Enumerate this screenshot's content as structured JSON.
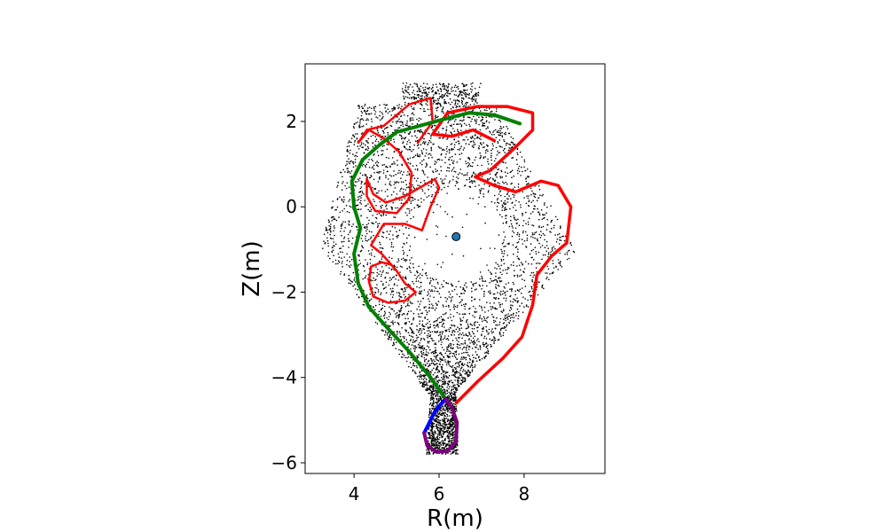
{
  "chart_data": {
    "type": "scatter",
    "title": "",
    "xlabel": "R(m)",
    "ylabel": "Z(m)",
    "xlim": [
      2.85,
      9.9
    ],
    "ylim": [
      -6.25,
      3.35
    ],
    "xticks": [
      4,
      6,
      8
    ],
    "xtick_labels": [
      "4",
      "6",
      "8"
    ],
    "yticks": [
      2,
      0,
      -2,
      -4,
      -6
    ],
    "ytick_labels": [
      "2",
      "0",
      "−2",
      "−4",
      "−6"
    ],
    "grid": false,
    "legend": "none",
    "colors": {
      "scatter": "#000000",
      "red_curve": "#ff0000",
      "green_curve": "#008000",
      "blue_curve": "#0000ff",
      "purple_curve": "#7f007f",
      "magnetic_axis": "#1f77b4"
    },
    "magnetic_axis": {
      "x": 6.4,
      "y": -0.7
    },
    "series": [
      {
        "kind": "line",
        "color": "#ff0000",
        "width": 3.5,
        "points": [
          [
            6.4,
            -4.6
          ],
          [
            6.9,
            -4.1
          ],
          [
            7.5,
            -3.55
          ],
          [
            7.95,
            -3.05
          ],
          [
            8.2,
            -2.3
          ],
          [
            8.3,
            -1.6
          ],
          [
            8.65,
            -1.15
          ],
          [
            9.0,
            -0.85
          ],
          [
            9.1,
            0.0
          ],
          [
            8.8,
            0.5
          ],
          [
            8.4,
            0.6
          ],
          [
            7.8,
            0.35
          ],
          [
            7.3,
            0.5
          ],
          [
            6.85,
            0.7
          ],
          [
            7.2,
            0.85
          ],
          [
            7.8,
            1.4
          ],
          [
            8.2,
            1.8
          ],
          [
            8.2,
            2.2
          ],
          [
            7.6,
            2.35
          ],
          [
            6.9,
            2.35
          ],
          [
            6.2,
            2.2
          ],
          [
            5.85,
            1.7
          ],
          [
            6.3,
            1.65
          ],
          [
            6.8,
            1.8
          ],
          [
            7.3,
            1.55
          ]
        ]
      },
      {
        "kind": "line",
        "color": "#ff0000",
        "width": 2.5,
        "points": [
          [
            5.5,
            1.5
          ],
          [
            5.85,
            2.0
          ],
          [
            5.8,
            2.55
          ],
          [
            5.3,
            2.4
          ],
          [
            4.7,
            1.9
          ],
          [
            4.3,
            1.8
          ],
          [
            4.1,
            1.5
          ],
          [
            4.35,
            1.8
          ],
          [
            4.7,
            1.6
          ],
          [
            5.05,
            1.3
          ],
          [
            5.35,
            0.8
          ],
          [
            5.3,
            0.2
          ],
          [
            5.0,
            -0.15
          ],
          [
            4.5,
            -0.1
          ],
          [
            4.3,
            0.25
          ],
          [
            4.3,
            0.65
          ],
          [
            4.45,
            0.3
          ],
          [
            4.75,
            0.1
          ],
          [
            5.2,
            0.25
          ],
          [
            5.55,
            0.45
          ],
          [
            5.9,
            0.65
          ],
          [
            6.0,
            0.45
          ],
          [
            5.8,
            0.0
          ],
          [
            5.6,
            -0.55
          ],
          [
            5.2,
            -0.4
          ],
          [
            4.7,
            -0.4
          ],
          [
            4.4,
            -0.9
          ],
          [
            4.65,
            -1.1
          ],
          [
            5.0,
            -1.5
          ],
          [
            5.2,
            -1.8
          ],
          [
            5.45,
            -2.0
          ],
          [
            5.2,
            -2.2
          ],
          [
            4.8,
            -2.25
          ],
          [
            4.45,
            -2.1
          ],
          [
            4.35,
            -1.75
          ],
          [
            4.4,
            -1.4
          ],
          [
            4.65,
            -1.3
          ],
          [
            4.85,
            -1.35
          ]
        ]
      },
      {
        "kind": "line",
        "color": "#008000",
        "width": 4,
        "points": [
          [
            6.15,
            -4.5
          ],
          [
            5.8,
            -4.0
          ],
          [
            5.3,
            -3.4
          ],
          [
            4.75,
            -2.8
          ],
          [
            4.35,
            -2.35
          ],
          [
            4.1,
            -1.8
          ],
          [
            4.0,
            -1.1
          ],
          [
            4.15,
            -0.5
          ],
          [
            4.0,
            0.0
          ],
          [
            3.95,
            0.6
          ],
          [
            4.2,
            1.1
          ],
          [
            4.6,
            1.45
          ],
          [
            5.0,
            1.75
          ],
          [
            5.55,
            1.9
          ],
          [
            6.1,
            2.05
          ],
          [
            6.7,
            2.2
          ],
          [
            7.3,
            2.15
          ],
          [
            7.9,
            1.95
          ]
        ]
      },
      {
        "kind": "line",
        "color": "#0000ff",
        "width": 4,
        "points": [
          [
            6.15,
            -4.5
          ],
          [
            5.9,
            -4.8
          ],
          [
            5.75,
            -5.1
          ],
          [
            5.65,
            -5.3
          ]
        ]
      },
      {
        "kind": "line",
        "color": "#7f007f",
        "width": 4,
        "points": [
          [
            5.65,
            -5.3
          ],
          [
            5.72,
            -5.6
          ],
          [
            5.95,
            -5.75
          ],
          [
            6.2,
            -5.72
          ],
          [
            6.4,
            -5.5
          ],
          [
            6.42,
            -5.05
          ],
          [
            6.3,
            -4.7
          ],
          [
            6.15,
            -4.5
          ]
        ]
      }
    ]
  }
}
